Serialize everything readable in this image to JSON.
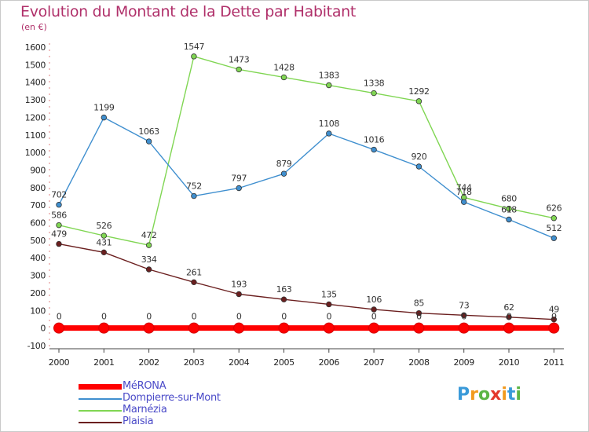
{
  "title": "Evolution du Montant de la Dette par Habitant",
  "unit_label": "(en €)",
  "brand": {
    "text": "Proxiti",
    "letter_colors": [
      "#3a9ad9",
      "#f29a1e",
      "#5bb545",
      "#e4372b",
      "#f29a1e",
      "#3a9ad9",
      "#5bb545"
    ]
  },
  "chart_data": {
    "type": "line",
    "title": "Evolution du Montant de la Dette par Habitant",
    "ylabel": "(en €)",
    "xlabel": "",
    "x": [
      "2000",
      "2001",
      "2002",
      "2003",
      "2004",
      "2005",
      "2006",
      "2007",
      "2008",
      "2009",
      "2010",
      "2011"
    ],
    "yticks": [
      "-100",
      "0",
      "100",
      "200",
      "300",
      "400",
      "500",
      "600",
      "700",
      "800",
      "900",
      "1000",
      "1100",
      "1200",
      "1300",
      "1400",
      "1500",
      "1600"
    ],
    "ylim": [
      -100,
      1600
    ],
    "grid": false,
    "legend_position": "bottom-left",
    "series": [
      {
        "name": "MéRONA",
        "color": "#ff0000",
        "values": [
          0,
          0,
          0,
          0,
          0,
          0,
          0,
          0,
          0,
          0,
          0,
          0
        ],
        "labels": [
          "0",
          "0",
          "0",
          "0",
          "0",
          "0",
          "0",
          "0",
          "0",
          "0",
          "0",
          "0"
        ]
      },
      {
        "name": "Dompierre-sur-Mont",
        "color": "#3f8fcf",
        "values": [
          702,
          1199,
          1063,
          752,
          797,
          879,
          1108,
          1016,
          920,
          718,
          618,
          512
        ],
        "labels": [
          "702",
          "1199",
          "1063",
          "752",
          "797",
          "879",
          "1108",
          "1016",
          "920",
          "718",
          "618",
          "512"
        ]
      },
      {
        "name": "Marnézia",
        "color": "#80d653",
        "values": [
          586,
          526,
          472,
          1547,
          1473,
          1428,
          1383,
          1338,
          1292,
          744,
          680,
          626
        ],
        "labels": [
          "586",
          "526",
          "472",
          "1547",
          "1473",
          "1428",
          "1383",
          "1338",
          "1292",
          "744",
          "680",
          "626"
        ]
      },
      {
        "name": "Plaisia",
        "color": "#6b1f1f",
        "values": [
          479,
          431,
          334,
          261,
          193,
          163,
          135,
          106,
          85,
          73,
          62,
          49
        ],
        "labels": [
          "479",
          "431",
          "334",
          "261",
          "193",
          "163",
          "135",
          "106",
          "85",
          "73",
          "62",
          "49"
        ]
      }
    ]
  }
}
